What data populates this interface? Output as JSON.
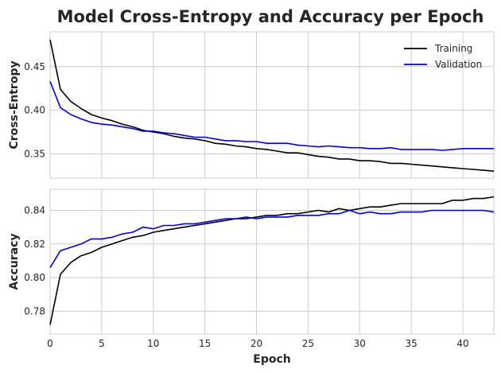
{
  "chart_data": [
    {
      "type": "line",
      "title": "Model Cross-Entropy and Accuracy per Epoch",
      "ylabel": "Cross-Entropy",
      "xlim": [
        0,
        43
      ],
      "ylim": [
        0.322,
        0.49
      ],
      "xticks": [
        0,
        5,
        10,
        15,
        20,
        25,
        30,
        35,
        40
      ],
      "yticks": [
        0.35,
        0.4,
        0.45
      ],
      "ytick_labels": [
        "0.35",
        "0.40",
        "0.45"
      ],
      "grid": true,
      "legend": "top-right",
      "x": [
        0,
        1,
        2,
        3,
        4,
        5,
        6,
        7,
        8,
        9,
        10,
        11,
        12,
        13,
        14,
        15,
        16,
        17,
        18,
        19,
        20,
        21,
        22,
        23,
        24,
        25,
        26,
        27,
        28,
        29,
        30,
        31,
        32,
        33,
        34,
        35,
        36,
        37,
        38,
        39,
        40,
        41,
        42,
        43
      ],
      "series": [
        {
          "name": "Training",
          "color": "#000000",
          "values": [
            0.481,
            0.424,
            0.41,
            0.402,
            0.395,
            0.391,
            0.388,
            0.384,
            0.381,
            0.377,
            0.375,
            0.373,
            0.37,
            0.368,
            0.367,
            0.365,
            0.362,
            0.361,
            0.359,
            0.358,
            0.356,
            0.355,
            0.353,
            0.351,
            0.351,
            0.349,
            0.347,
            0.346,
            0.344,
            0.344,
            0.342,
            0.342,
            0.341,
            0.339,
            0.339,
            0.338,
            0.337,
            0.336,
            0.335,
            0.334,
            0.333,
            0.332,
            0.331,
            0.33
          ]
        },
        {
          "name": "Validation",
          "color": "#0000ee",
          "values": [
            0.433,
            0.403,
            0.395,
            0.39,
            0.386,
            0.384,
            0.383,
            0.381,
            0.379,
            0.376,
            0.376,
            0.374,
            0.373,
            0.371,
            0.369,
            0.369,
            0.367,
            0.365,
            0.365,
            0.364,
            0.364,
            0.362,
            0.362,
            0.362,
            0.36,
            0.359,
            0.358,
            0.359,
            0.358,
            0.357,
            0.357,
            0.356,
            0.356,
            0.357,
            0.355,
            0.355,
            0.355,
            0.355,
            0.354,
            0.355,
            0.356,
            0.356,
            0.356,
            0.356
          ]
        }
      ]
    },
    {
      "type": "line",
      "ylabel": "Accuracy",
      "xlabel": "Epoch",
      "xlim": [
        0,
        43
      ],
      "ylim": [
        0.7665,
        0.8525
      ],
      "xticks": [
        0,
        5,
        10,
        15,
        20,
        25,
        30,
        35,
        40
      ],
      "xtick_labels": [
        "0",
        "5",
        "10",
        "15",
        "20",
        "25",
        "30",
        "35",
        "40"
      ],
      "yticks": [
        0.78,
        0.8,
        0.82,
        0.84
      ],
      "ytick_labels": [
        "0.78",
        "0.80",
        "0.82",
        "0.84"
      ],
      "grid": true,
      "x": [
        0,
        1,
        2,
        3,
        4,
        5,
        6,
        7,
        8,
        9,
        10,
        11,
        12,
        13,
        14,
        15,
        16,
        17,
        18,
        19,
        20,
        21,
        22,
        23,
        24,
        25,
        26,
        27,
        28,
        29,
        30,
        31,
        32,
        33,
        34,
        35,
        36,
        37,
        38,
        39,
        40,
        41,
        42,
        43
      ],
      "series": [
        {
          "name": "Training",
          "color": "#000000",
          "values": [
            0.772,
            0.802,
            0.809,
            0.813,
            0.815,
            0.818,
            0.82,
            0.822,
            0.824,
            0.825,
            0.827,
            0.828,
            0.829,
            0.83,
            0.831,
            0.832,
            0.833,
            0.834,
            0.835,
            0.835,
            0.836,
            0.837,
            0.837,
            0.838,
            0.838,
            0.839,
            0.84,
            0.839,
            0.841,
            0.84,
            0.841,
            0.842,
            0.842,
            0.843,
            0.844,
            0.844,
            0.844,
            0.844,
            0.844,
            0.846,
            0.846,
            0.847,
            0.847,
            0.848
          ]
        },
        {
          "name": "Validation",
          "color": "#0000ee",
          "values": [
            0.806,
            0.816,
            0.818,
            0.82,
            0.823,
            0.823,
            0.824,
            0.826,
            0.827,
            0.83,
            0.829,
            0.831,
            0.831,
            0.832,
            0.832,
            0.833,
            0.834,
            0.835,
            0.835,
            0.836,
            0.835,
            0.836,
            0.836,
            0.836,
            0.837,
            0.837,
            0.837,
            0.838,
            0.838,
            0.84,
            0.838,
            0.839,
            0.838,
            0.838,
            0.839,
            0.839,
            0.839,
            0.84,
            0.84,
            0.84,
            0.84,
            0.84,
            0.84,
            0.839
          ]
        }
      ]
    }
  ]
}
